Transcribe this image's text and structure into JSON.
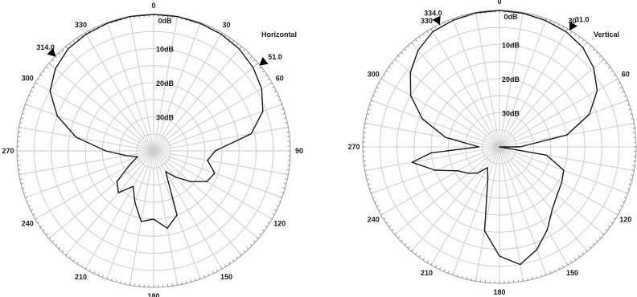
{
  "chart_data": [
    {
      "type": "polar-line",
      "title": "Horizontal",
      "angle_labels": [
        "0",
        "30",
        "60",
        "90",
        "120",
        "150",
        "180",
        "210",
        "240",
        "270",
        "300",
        "330"
      ],
      "radial_labels": [
        "0dB",
        "10dB",
        "20dB",
        "30dB"
      ],
      "radial_range_db": [
        0,
        40
      ],
      "markers": [
        {
          "angle": 314,
          "label": "314.0"
        },
        {
          "angle": 51,
          "label": "51.0"
        }
      ],
      "series": [
        {
          "angles": [
            0,
            10,
            20,
            30,
            40,
            50,
            60,
            70,
            80,
            90,
            100,
            110,
            120,
            130,
            140,
            150,
            160,
            170,
            180,
            190,
            200,
            210,
            220,
            230,
            240,
            250,
            260,
            270,
            280,
            290,
            300,
            310,
            320,
            330,
            340,
            350
          ],
          "attenuation_db": [
            0,
            0,
            0.2,
            0.5,
            1,
            2,
            3.5,
            6,
            11,
            22,
            24,
            21,
            22,
            26,
            30,
            33,
            20,
            17,
            20,
            19,
            24,
            28,
            24,
            26,
            32,
            35,
            32,
            26,
            17,
            10,
            5,
            2.5,
            1,
            0.5,
            0.2,
            0
          ]
        }
      ]
    },
    {
      "type": "polar-line",
      "title": "Vertical",
      "angle_labels": [
        "0",
        "30",
        "60",
        "90",
        "120",
        "150",
        "180",
        "210",
        "240",
        "270",
        "300",
        "330"
      ],
      "radial_labels": [
        "0dB",
        "10dB",
        "20dB",
        "30dB"
      ],
      "radial_range_db": [
        0,
        40
      ],
      "markers": [
        {
          "angle": 334,
          "label": "334.0"
        },
        {
          "angle": 31,
          "label": "31.0"
        }
      ],
      "series": [
        {
          "angles": [
            0,
            10,
            20,
            30,
            40,
            50,
            60,
            70,
            80,
            90,
            95,
            100,
            110,
            120,
            130,
            140,
            150,
            160,
            170,
            180,
            190,
            200,
            210,
            220,
            230,
            240,
            250,
            260,
            265,
            270,
            280,
            290,
            300,
            310,
            320,
            330,
            340,
            350
          ],
          "attenuation_db": [
            0,
            0.2,
            0.6,
            1,
            2,
            4,
            7,
            12,
            20,
            34,
            40,
            26,
            20,
            19,
            18,
            16,
            12,
            8,
            5,
            8,
            15,
            30,
            33,
            30,
            28,
            26,
            20,
            14,
            20,
            34,
            24,
            16,
            10,
            6,
            3,
            1,
            0.5,
            0.1
          ]
        }
      ]
    }
  ]
}
